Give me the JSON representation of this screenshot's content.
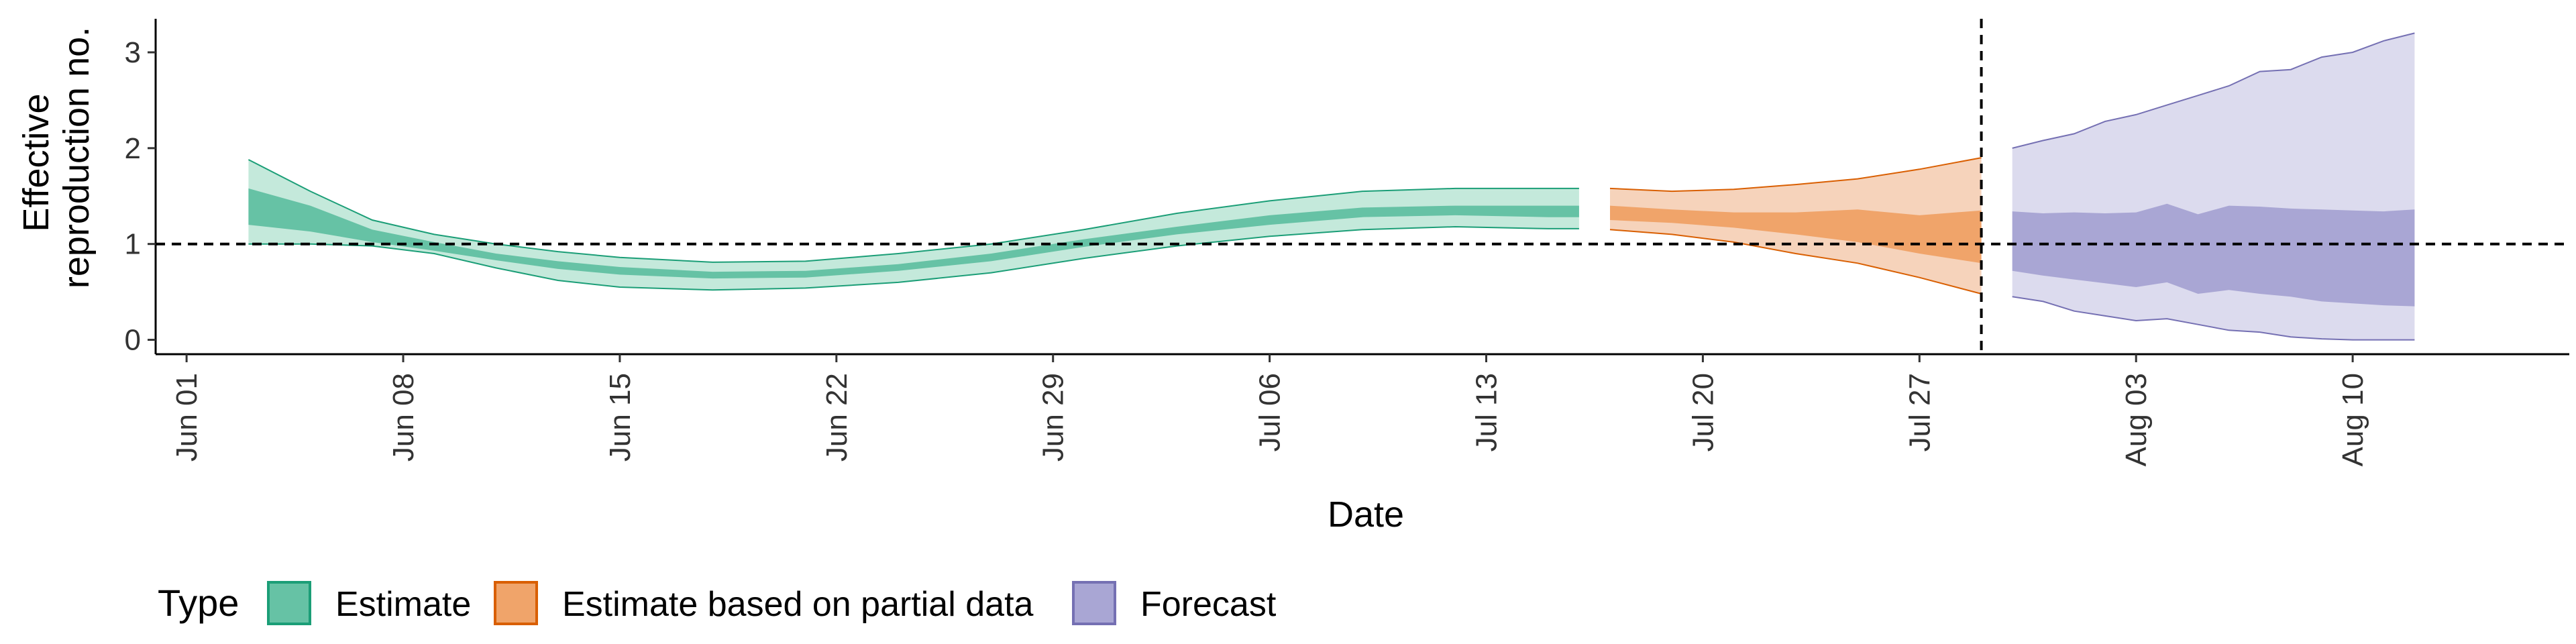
{
  "chart_data": {
    "type": "area",
    "xlabel": "Date",
    "ylabel_lines": [
      "Effective",
      "reproduction no."
    ],
    "x_ticks": [
      "Jun 01",
      "Jun 08",
      "Jun 15",
      "Jun 22",
      "Jun 29",
      "Jul 06",
      "Jul 13",
      "Jul 20",
      "Jul 27",
      "Aug 03",
      "Aug 10"
    ],
    "y_ticks": [
      "0",
      "1",
      "2",
      "3"
    ],
    "xlim": [
      "2020-05-31",
      "2020-08-17"
    ],
    "ylim": [
      -0.15,
      3.35
    ],
    "reference_line_y": 1,
    "reference_line_date": "2020-07-29",
    "legend": {
      "title": "Type",
      "position": "bottom",
      "entries": [
        {
          "label": "Estimate",
          "fill": "#66c2a5",
          "stroke": "#1b9e77"
        },
        {
          "label": "Estimate based on partial data",
          "fill": "#f0a46a",
          "stroke": "#d95f02"
        },
        {
          "label": "Forecast",
          "fill": "#a9a6d4",
          "stroke": "#7570b3"
        }
      ]
    },
    "series": [
      {
        "type": "Estimate",
        "inner_fill": "#66c2a5",
        "outer_fill": "#c4e9db",
        "stroke": "#1b9e77",
        "points": [
          {
            "date": "2020-06-03",
            "lo90": 1.0,
            "lo50": 1.2,
            "hi50": 1.58,
            "hi90": 1.88
          },
          {
            "date": "2020-06-05",
            "lo90": 1.0,
            "lo50": 1.13,
            "hi50": 1.4,
            "hi90": 1.55
          },
          {
            "date": "2020-06-07",
            "lo90": 0.98,
            "lo50": 1.02,
            "hi50": 1.15,
            "hi90": 1.25
          },
          {
            "date": "2020-06-09",
            "lo90": 0.9,
            "lo50": 0.93,
            "hi50": 1.02,
            "hi90": 1.1
          },
          {
            "date": "2020-06-11",
            "lo90": 0.75,
            "lo50": 0.83,
            "hi50": 0.9,
            "hi90": 1.0
          },
          {
            "date": "2020-06-13",
            "lo90": 0.62,
            "lo50": 0.74,
            "hi50": 0.82,
            "hi90": 0.92
          },
          {
            "date": "2020-06-15",
            "lo90": 0.55,
            "lo50": 0.68,
            "hi50": 0.76,
            "hi90": 0.86
          },
          {
            "date": "2020-06-18",
            "lo90": 0.52,
            "lo50": 0.64,
            "hi50": 0.71,
            "hi90": 0.81
          },
          {
            "date": "2020-06-21",
            "lo90": 0.54,
            "lo50": 0.65,
            "hi50": 0.72,
            "hi90": 0.82
          },
          {
            "date": "2020-06-24",
            "lo90": 0.6,
            "lo50": 0.72,
            "hi50": 0.79,
            "hi90": 0.9
          },
          {
            "date": "2020-06-27",
            "lo90": 0.7,
            "lo50": 0.82,
            "hi50": 0.9,
            "hi90": 1.0
          },
          {
            "date": "2020-06-30",
            "lo90": 0.85,
            "lo50": 0.97,
            "hi50": 1.05,
            "hi90": 1.15
          },
          {
            "date": "2020-07-03",
            "lo90": 0.98,
            "lo50": 1.1,
            "hi50": 1.18,
            "hi90": 1.32
          },
          {
            "date": "2020-07-06",
            "lo90": 1.08,
            "lo50": 1.2,
            "hi50": 1.3,
            "hi90": 1.45
          },
          {
            "date": "2020-07-09",
            "lo90": 1.15,
            "lo50": 1.28,
            "hi50": 1.38,
            "hi90": 1.55
          },
          {
            "date": "2020-07-12",
            "lo90": 1.18,
            "lo50": 1.3,
            "hi50": 1.4,
            "hi90": 1.58
          },
          {
            "date": "2020-07-15",
            "lo90": 1.16,
            "lo50": 1.28,
            "hi50": 1.4,
            "hi90": 1.58
          },
          {
            "date": "2020-07-16",
            "lo90": 1.16,
            "lo50": 1.28,
            "hi50": 1.4,
            "hi90": 1.58
          }
        ]
      },
      {
        "type": "Estimate based on partial data",
        "inner_fill": "#f0a46a",
        "outer_fill": "#f6d3bb",
        "stroke": "#d95f02",
        "points": [
          {
            "date": "2020-07-17",
            "lo90": 1.15,
            "lo50": 1.25,
            "hi50": 1.4,
            "hi90": 1.58
          },
          {
            "date": "2020-07-19",
            "lo90": 1.1,
            "lo50": 1.22,
            "hi50": 1.36,
            "hi90": 1.55
          },
          {
            "date": "2020-07-21",
            "lo90": 1.02,
            "lo50": 1.17,
            "hi50": 1.33,
            "hi90": 1.57
          },
          {
            "date": "2020-07-23",
            "lo90": 0.9,
            "lo50": 1.1,
            "hi50": 1.33,
            "hi90": 1.62
          },
          {
            "date": "2020-07-25",
            "lo90": 0.8,
            "lo50": 1.02,
            "hi50": 1.36,
            "hi90": 1.68
          },
          {
            "date": "2020-07-27",
            "lo90": 0.65,
            "lo50": 0.9,
            "hi50": 1.3,
            "hi90": 1.78
          },
          {
            "date": "2020-07-29",
            "lo90": 0.48,
            "lo50": 0.8,
            "hi50": 1.35,
            "hi90": 1.9
          }
        ]
      },
      {
        "type": "Forecast",
        "inner_fill": "#a9a6d4",
        "outer_fill": "#dcdbee",
        "stroke": "#7570b3",
        "points": [
          {
            "date": "2020-07-30",
            "lo90": 0.45,
            "lo50": 0.72,
            "hi50": 1.34,
            "hi90": 2.0
          },
          {
            "date": "2020-07-31",
            "lo90": 0.4,
            "lo50": 0.67,
            "hi50": 1.32,
            "hi90": 2.08
          },
          {
            "date": "2020-08-01",
            "lo90": 0.3,
            "lo50": 0.63,
            "hi50": 1.33,
            "hi90": 2.15
          },
          {
            "date": "2020-08-02",
            "lo90": 0.25,
            "lo50": 0.59,
            "hi50": 1.32,
            "hi90": 2.28
          },
          {
            "date": "2020-08-03",
            "lo90": 0.2,
            "lo50": 0.55,
            "hi50": 1.33,
            "hi90": 2.35
          },
          {
            "date": "2020-08-04",
            "lo90": 0.22,
            "lo50": 0.6,
            "hi50": 1.42,
            "hi90": 2.45
          },
          {
            "date": "2020-08-05",
            "lo90": 0.16,
            "lo50": 0.48,
            "hi50": 1.31,
            "hi90": 2.55
          },
          {
            "date": "2020-08-06",
            "lo90": 0.1,
            "lo50": 0.52,
            "hi50": 1.4,
            "hi90": 2.65
          },
          {
            "date": "2020-08-07",
            "lo90": 0.08,
            "lo50": 0.48,
            "hi50": 1.39,
            "hi90": 2.8
          },
          {
            "date": "2020-08-08",
            "lo90": 0.03,
            "lo50": 0.45,
            "hi50": 1.37,
            "hi90": 2.82
          },
          {
            "date": "2020-08-09",
            "lo90": 0.01,
            "lo50": 0.4,
            "hi50": 1.36,
            "hi90": 2.95
          },
          {
            "date": "2020-08-10",
            "lo90": 0.0,
            "lo50": 0.38,
            "hi50": 1.35,
            "hi90": 3.0
          },
          {
            "date": "2020-08-11",
            "lo90": 0.0,
            "lo50": 0.36,
            "hi50": 1.34,
            "hi90": 3.12
          },
          {
            "date": "2020-08-12",
            "lo90": 0.0,
            "lo50": 0.35,
            "hi50": 1.36,
            "hi90": 3.2
          }
        ]
      }
    ]
  }
}
